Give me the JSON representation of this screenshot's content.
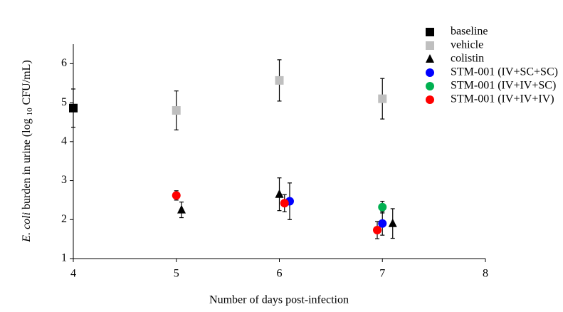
{
  "chart_data": {
    "type": "scatter",
    "xlabel": "Number of days post-infection",
    "ylabel": {
      "italic": "E. coli",
      "text": "burden in urine (log",
      "subscript": "10",
      "unit": "CFU/mL)"
    },
    "xlim": [
      4,
      8
    ],
    "xticks": [
      4,
      5,
      6,
      7,
      8
    ],
    "ylim": [
      1,
      6.5
    ],
    "yticks": [
      1,
      2,
      3,
      4,
      5,
      6
    ],
    "legend": "top-right",
    "series": [
      {
        "name": "baseline",
        "color": "#000000",
        "marker": "square",
        "x": [
          4
        ],
        "values": [
          4.86
        ],
        "errors": [
          0.49
        ]
      },
      {
        "name": "vehicle",
        "color": "#bfbfbf",
        "marker": "square",
        "x": [
          5,
          6,
          7
        ],
        "values": [
          4.8,
          5.57,
          5.1
        ],
        "errors": [
          0.5,
          0.53,
          0.52
        ]
      },
      {
        "name": "colistin",
        "color": "#000000",
        "marker": "triangle",
        "x": [
          5.05,
          6.0,
          7.1
        ],
        "values": [
          2.25,
          2.65,
          1.9
        ],
        "errors": [
          0.2,
          0.42,
          0.38
        ]
      },
      {
        "name": "STM-001 (IV+SC+SC)",
        "color": "#0000ff",
        "marker": "circle",
        "x": [
          6.1,
          7.0
        ],
        "values": [
          2.47,
          1.9
        ],
        "errors": [
          0.47,
          0.3
        ]
      },
      {
        "name": "STM-001 (IV+IV+SC)",
        "color": "#00b050",
        "marker": "circle",
        "x": [
          7.0
        ],
        "values": [
          2.32
        ],
        "errors": [
          0.15
        ]
      },
      {
        "name": "STM-001 (IV+IV+IV)",
        "color": "#ff0000",
        "marker": "circle",
        "x": [
          5.0,
          6.05,
          6.95
        ],
        "values": [
          2.62,
          2.42,
          1.73
        ],
        "errors": [
          0.12,
          0.22,
          0.22
        ]
      }
    ]
  }
}
